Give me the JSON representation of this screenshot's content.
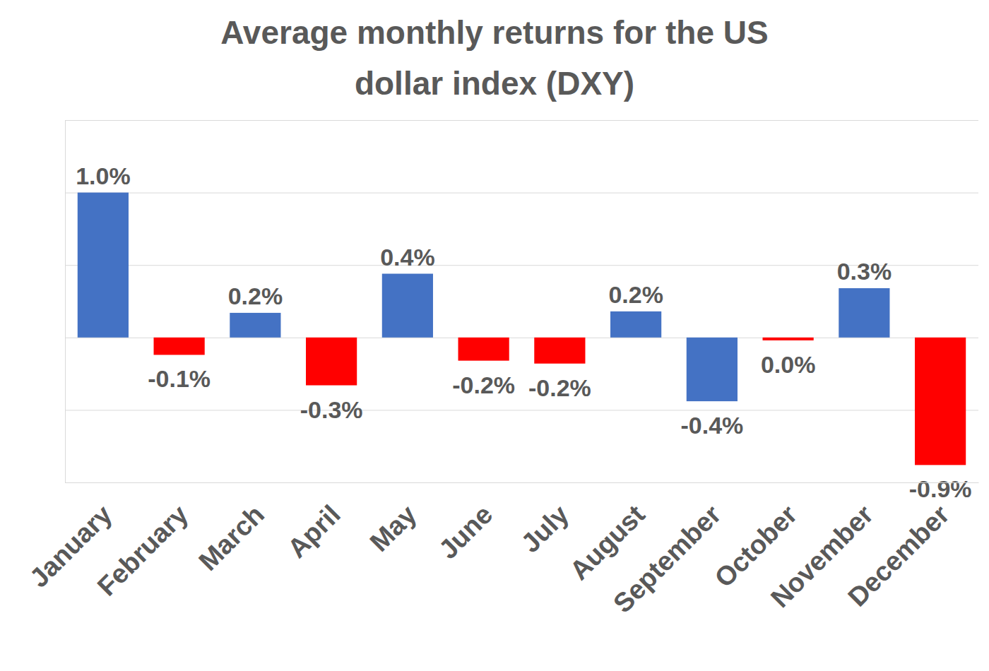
{
  "chart_data": {
    "type": "bar",
    "title": "Average monthly returns for the US\ndollar index (DXY)",
    "categories": [
      "January",
      "February",
      "March",
      "April",
      "May",
      "June",
      "July",
      "August",
      "September",
      "October",
      "November",
      "December"
    ],
    "values": [
      1.0,
      -0.12,
      0.17,
      -0.33,
      0.44,
      -0.16,
      -0.18,
      0.18,
      -0.44,
      -0.02,
      0.34,
      -0.88
    ],
    "value_labels": [
      "1.0%",
      "-0.1%",
      "0.2%",
      "-0.3%",
      "0.4%",
      "-0.2%",
      "-0.2%",
      "0.2%",
      "-0.4%",
      "0.0%",
      "0.3%",
      "-0.9%"
    ],
    "colors": [
      "#4472c4",
      "#ff0000",
      "#4472c4",
      "#ff0000",
      "#4472c4",
      "#ff0000",
      "#ff0000",
      "#4472c4",
      "#4472c4",
      "#ff0000",
      "#4472c4",
      "#ff0000"
    ],
    "ylim": [
      -1.0,
      1.5
    ],
    "yticks": [
      -1.0,
      -0.5,
      0,
      0.5,
      1.0,
      1.5
    ],
    "grid": true,
    "data_labels": true,
    "tick_labels": "x"
  }
}
